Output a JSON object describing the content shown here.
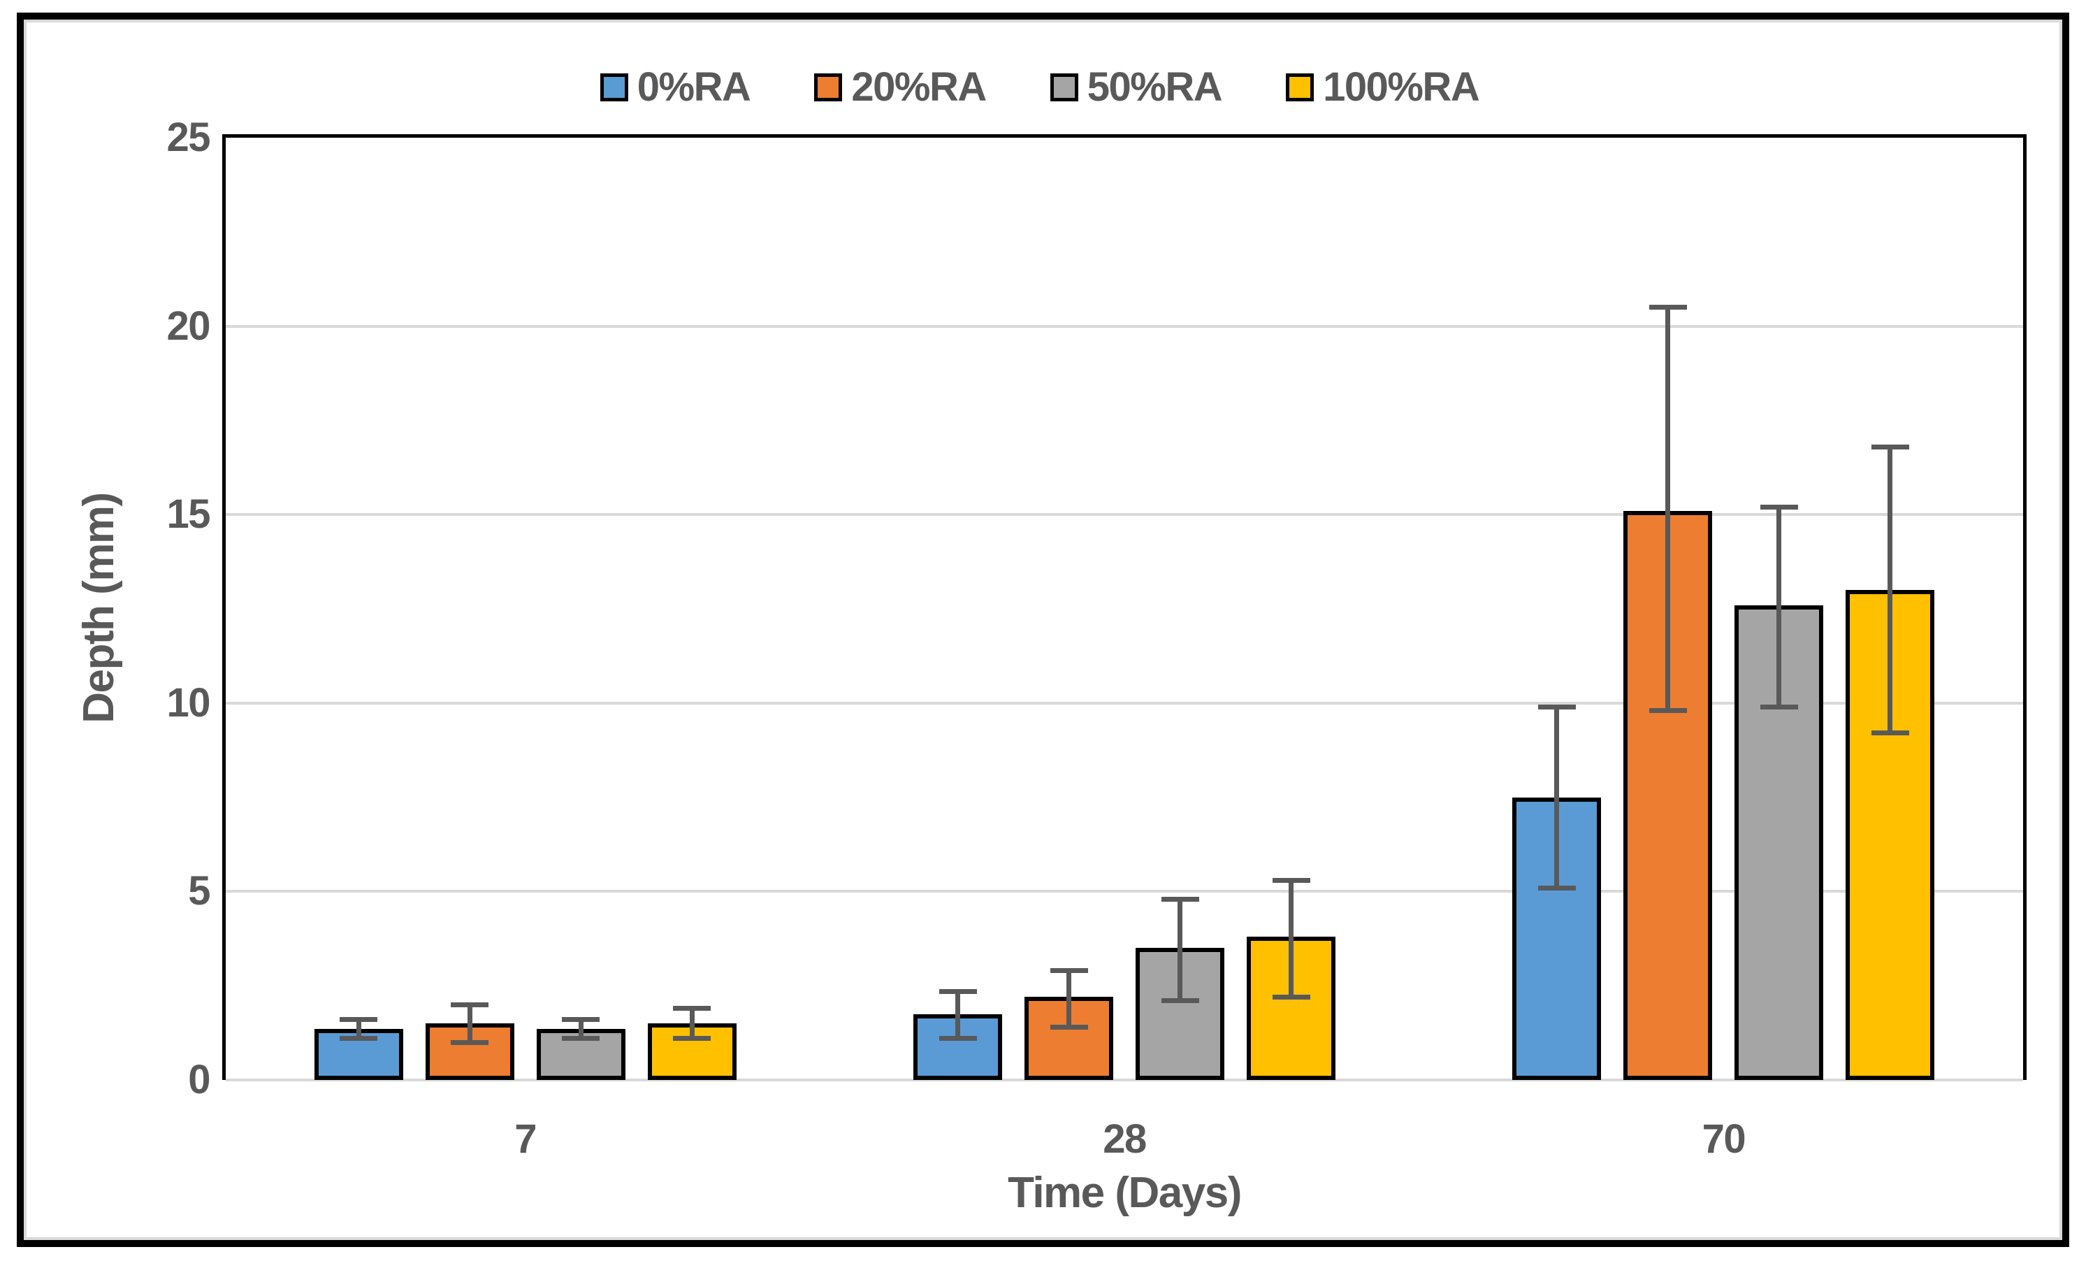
{
  "chart_data": {
    "type": "bar",
    "title": "",
    "xlabel": "Time (Days)",
    "ylabel": "Depth (mm)",
    "categories": [
      "7",
      "28",
      "70"
    ],
    "series": [
      {
        "name": "0%RA",
        "color": "#5B9BD5",
        "values": [
          1.35,
          1.75,
          7.5
        ],
        "err_hi": [
          1.6,
          2.35,
          9.9
        ],
        "err_lo": [
          1.1,
          1.1,
          5.1
        ]
      },
      {
        "name": "20%RA",
        "color": "#ED7D31",
        "values": [
          1.5,
          2.2,
          15.1
        ],
        "err_hi": [
          2.0,
          2.9,
          20.5
        ],
        "err_lo": [
          1.0,
          1.4,
          9.8
        ]
      },
      {
        "name": "50%RA",
        "color": "#A5A5A5",
        "values": [
          1.35,
          3.5,
          12.6
        ],
        "err_hi": [
          1.6,
          4.8,
          15.2
        ],
        "err_lo": [
          1.1,
          2.1,
          9.9
        ]
      },
      {
        "name": "100%RA",
        "color": "#FFC000",
        "values": [
          1.5,
          3.8,
          13.0
        ],
        "err_hi": [
          1.9,
          5.3,
          16.8
        ],
        "err_lo": [
          1.1,
          2.2,
          9.2
        ]
      }
    ],
    "ylim": [
      0,
      25
    ],
    "yticks": [
      0,
      5,
      10,
      15,
      20,
      25
    ],
    "grid": true,
    "legend_position": "top-center",
    "bar_border_color": "#000000",
    "error_bar_color": "#595959",
    "text_color": "#595959",
    "gridline_color": "#D9D9D9",
    "axis_line_color": "#000000"
  }
}
